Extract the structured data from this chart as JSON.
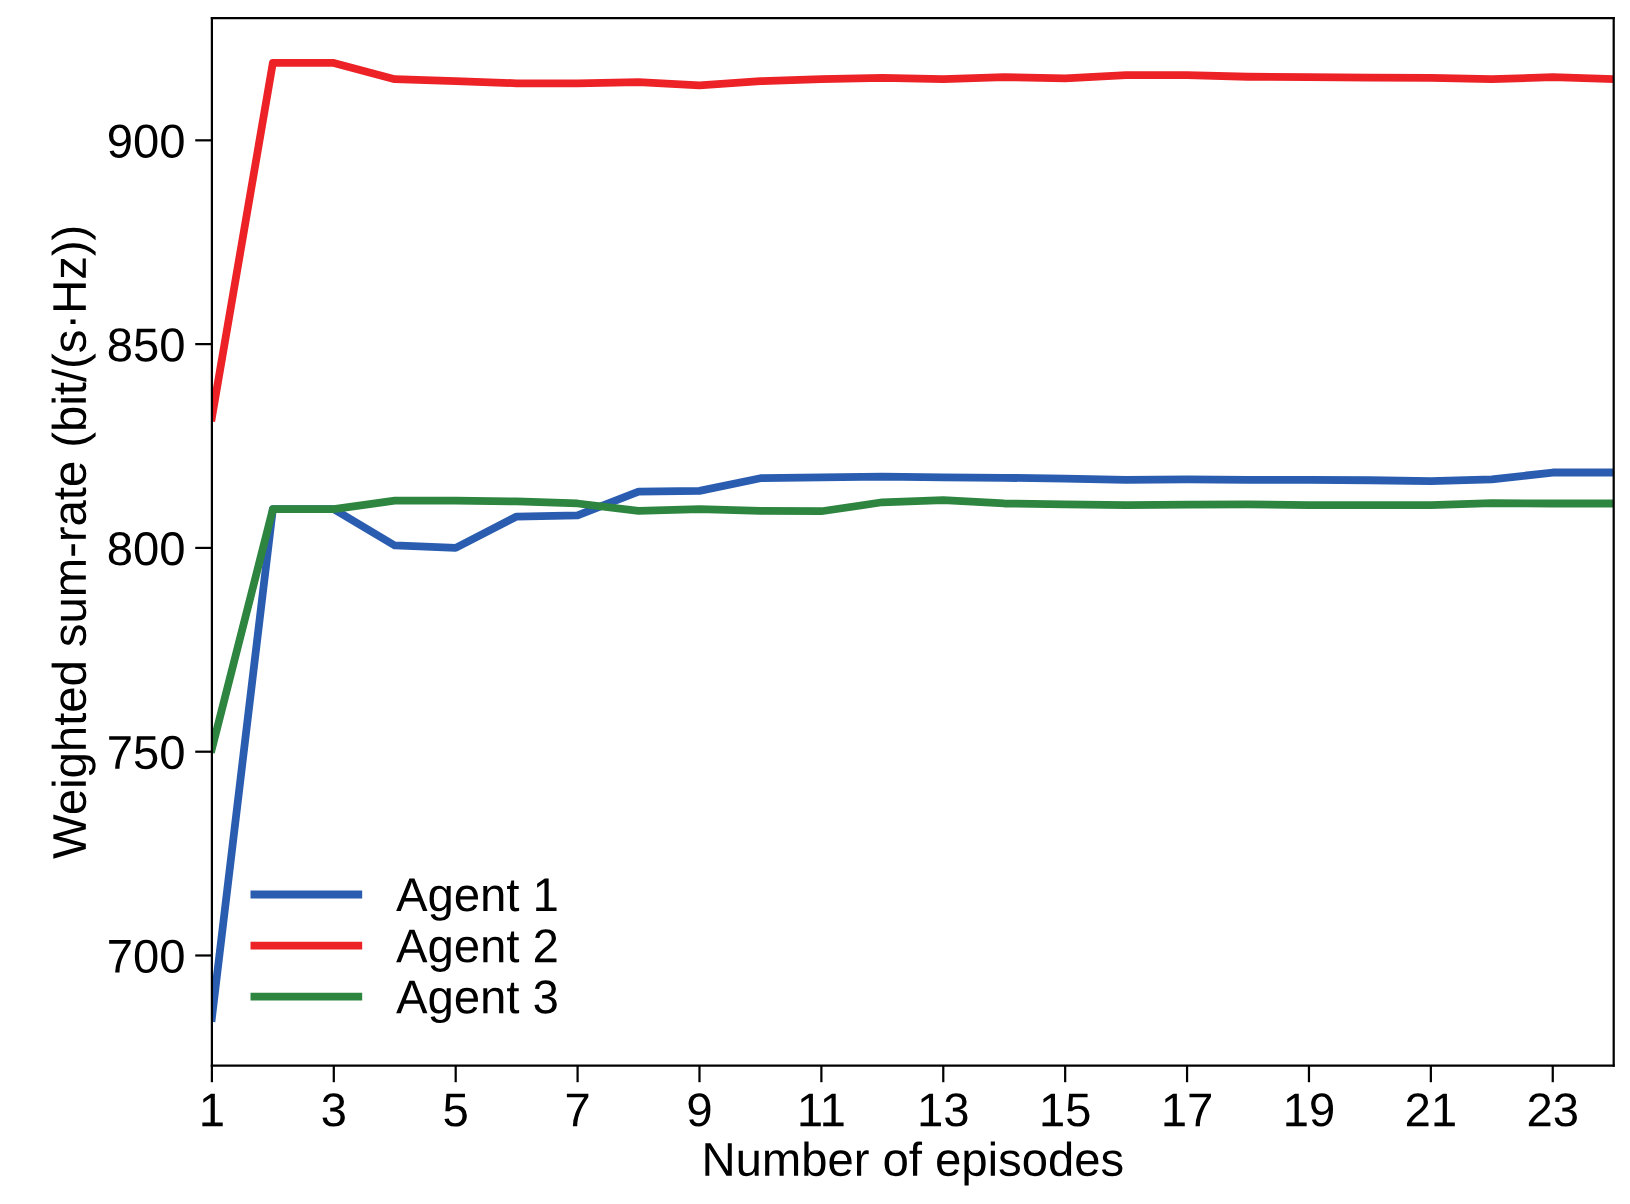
{
  "chart_data": {
    "type": "line",
    "xlabel": "Number of episodes",
    "ylabel": "Weighted sum-rate (bit/(s·Hz))",
    "x": [
      1,
      2,
      3,
      4,
      5,
      6,
      7,
      8,
      9,
      10,
      11,
      12,
      13,
      14,
      15,
      16,
      17,
      18,
      19,
      20,
      21,
      22,
      23,
      24
    ],
    "series": [
      {
        "name": "Agent 1",
        "color": "#2a5db0",
        "values": [
          684.7,
          809.5,
          809.5,
          800.6,
          800,
          807.7,
          808,
          813.8,
          814,
          817.1,
          817.3,
          817.5,
          817.3,
          817.2,
          817,
          816.7,
          816.8,
          816.7,
          816.7,
          816.6,
          816.4,
          816.8,
          818.5,
          818.5
        ]
      },
      {
        "name": "Agent 2",
        "color": "#ec2227",
        "values": [
          832,
          919,
          919,
          915,
          914.5,
          914,
          914,
          914.3,
          913.5,
          914.5,
          915,
          915.3,
          915,
          915.5,
          915.2,
          916,
          916,
          915.6,
          915.5,
          915.4,
          915.3,
          915,
          915.5,
          915
        ]
      },
      {
        "name": "Agent 3",
        "color": "#2e8540",
        "values": [
          750.7,
          809.5,
          809.5,
          811.6,
          811.6,
          811.4,
          810.9,
          809.1,
          809.5,
          809.1,
          809,
          811.2,
          811.7,
          810.9,
          810.7,
          810.5,
          810.6,
          810.7,
          810.5,
          810.5,
          810.5,
          811,
          810.9,
          810.9
        ]
      }
    ],
    "xlim": [
      1,
      24
    ],
    "ylim": [
      673,
      930
    ],
    "xticks": [
      1,
      3,
      5,
      7,
      9,
      11,
      13,
      15,
      17,
      19,
      21,
      23
    ],
    "yticks": [
      700,
      750,
      800,
      850,
      900
    ],
    "grid": false,
    "legend": "bottom left",
    "line_style": "solid",
    "marker": "none"
  }
}
